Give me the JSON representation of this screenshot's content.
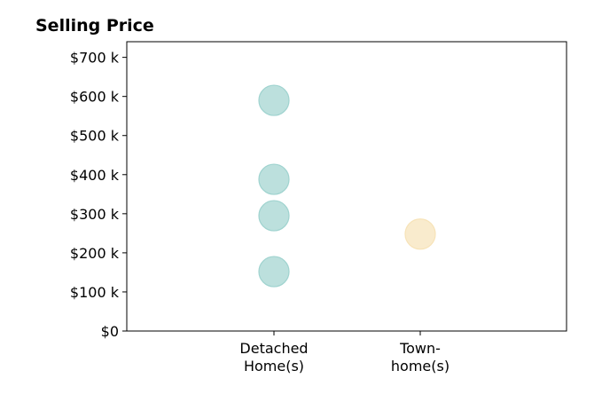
{
  "chart_data": {
    "type": "scatter",
    "title": "Selling Price",
    "xlabel": "",
    "ylabel": "",
    "categories": [
      [
        "Detached",
        "Home(s)"
      ],
      [
        "Town-",
        "home(s)"
      ]
    ],
    "ylim": [
      0,
      740000
    ],
    "y_ticks": [
      {
        "value": 0,
        "label": "$0"
      },
      {
        "value": 100000,
        "label": "$100 k"
      },
      {
        "value": 200000,
        "label": "$200 k"
      },
      {
        "value": 300000,
        "label": "$300 k"
      },
      {
        "value": 400000,
        "label": "$400 k"
      },
      {
        "value": 500000,
        "label": "$500 k"
      },
      {
        "value": 600000,
        "label": "$600 k"
      },
      {
        "value": 700000,
        "label": "$700 k"
      }
    ],
    "series": [
      {
        "category_index": 0,
        "values": [
          590000,
          388000,
          295000,
          152000
        ],
        "color": "#9fd3cf"
      },
      {
        "category_index": 1,
        "values": [
          248000
        ],
        "color": "#f7e3b8"
      }
    ],
    "grid": false,
    "legend": "none"
  }
}
